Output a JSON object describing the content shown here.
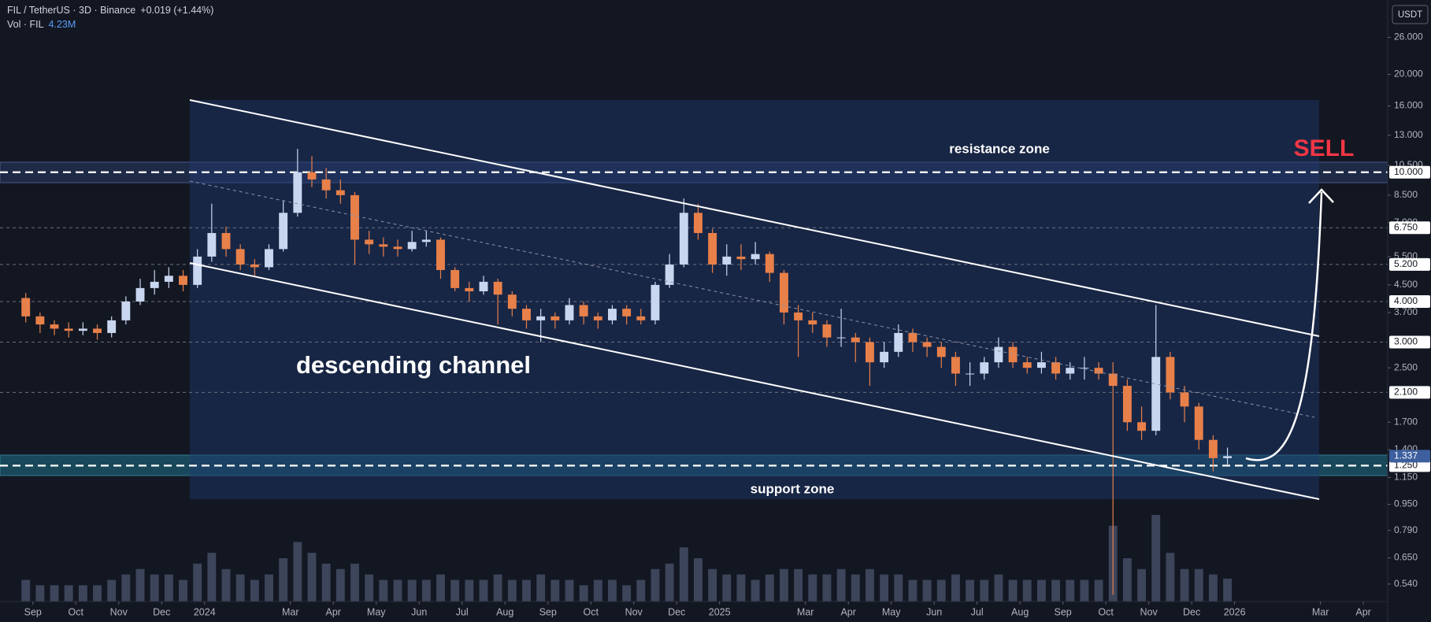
{
  "header": {
    "symbol": "FIL / TetherUS · 3D · Binance",
    "change": "+0.019 (+1.44%)",
    "volume_name": "Vol · FIL",
    "volume": "4.23M"
  },
  "chart_data": {
    "type": "candlestick",
    "axis_unit": "USDT",
    "log_scale": true,
    "grid": false,
    "up_color": "#c9d6f0",
    "down_color": "#e8804a",
    "volume_color": "#8a9bc4",
    "ylim": [
      0.477,
      33.9
    ],
    "yticks": [
      {
        "value": 26,
        "label": "26.000"
      },
      {
        "value": 20,
        "label": "20.000"
      },
      {
        "value": 16,
        "label": "16.000"
      },
      {
        "value": 13,
        "label": "13.000"
      },
      {
        "value": 10.5,
        "label": "10.500"
      },
      {
        "value": 8.5,
        "label": "8.500"
      },
      {
        "value": 7,
        "label": "7.000"
      },
      {
        "value": 5.5,
        "label": "5.500"
      },
      {
        "value": 4.5,
        "label": "4.500"
      },
      {
        "value": 3.7,
        "label": "3.700"
      },
      {
        "value": 2.5,
        "label": "2.500"
      },
      {
        "value": 1.7,
        "label": "1.700"
      },
      {
        "value": 1.4,
        "label": "1.400"
      },
      {
        "value": 1.15,
        "label": "1.150"
      },
      {
        "value": 0.95,
        "label": "0.950"
      },
      {
        "value": 0.79,
        "label": "0.790"
      },
      {
        "value": 0.65,
        "label": "0.650"
      },
      {
        "value": 0.54,
        "label": "0.540"
      }
    ],
    "price_lines": [
      {
        "value": 10,
        "label": "10.000",
        "style": "bold"
      },
      {
        "value": 6.75,
        "label": "6.750",
        "style": "thin"
      },
      {
        "value": 5.2,
        "label": "5.200",
        "style": "thin"
      },
      {
        "value": 4,
        "label": "4.000",
        "style": "thin"
      },
      {
        "value": 3,
        "label": "3.000",
        "style": "thin"
      },
      {
        "value": 2.1,
        "label": "2.100",
        "style": "thin"
      },
      {
        "value": 1.25,
        "label": "1.250",
        "style": "bold"
      }
    ],
    "xlim": [
      -1.8,
      95.2
    ],
    "xticks": [
      {
        "value": 0.5,
        "label": "Sep"
      },
      {
        "value": 3.5,
        "label": "Oct"
      },
      {
        "value": 6.5,
        "label": "Nov"
      },
      {
        "value": 9.5,
        "label": "Dec"
      },
      {
        "value": 12.5,
        "label": "2024"
      },
      {
        "value": 18.5,
        "label": "Mar"
      },
      {
        "value": 21.5,
        "label": "Apr"
      },
      {
        "value": 24.5,
        "label": "May"
      },
      {
        "value": 27.5,
        "label": "Jun"
      },
      {
        "value": 30.5,
        "label": "Jul"
      },
      {
        "value": 33.5,
        "label": "Aug"
      },
      {
        "value": 36.5,
        "label": "Sep"
      },
      {
        "value": 39.5,
        "label": "Oct"
      },
      {
        "value": 42.5,
        "label": "Nov"
      },
      {
        "value": 45.5,
        "label": "Dec"
      },
      {
        "value": 48.5,
        "label": "2025"
      },
      {
        "value": 54.5,
        "label": "Mar"
      },
      {
        "value": 57.5,
        "label": "Apr"
      },
      {
        "value": 60.5,
        "label": "May"
      },
      {
        "value": 63.5,
        "label": "Jun"
      },
      {
        "value": 66.5,
        "label": "Jul"
      },
      {
        "value": 69.5,
        "label": "Aug"
      },
      {
        "value": 72.5,
        "label": "Sep"
      },
      {
        "value": 75.5,
        "label": "Oct"
      },
      {
        "value": 78.5,
        "label": "Nov"
      },
      {
        "value": 81.5,
        "label": "Dec"
      },
      {
        "value": 84.5,
        "label": "2026"
      },
      {
        "value": 90.5,
        "label": "Mar"
      },
      {
        "value": 93.5,
        "label": "Apr"
      }
    ],
    "open": [
      4.1,
      3.6,
      3.4,
      3.3,
      3.25,
      3.3,
      3.2,
      3.5,
      4.0,
      4.4,
      4.6,
      4.8,
      4.5,
      5.5,
      6.5,
      5.8,
      5.2,
      5.1,
      5.8,
      7.5,
      10.0,
      9.5,
      8.8,
      8.5,
      6.2,
      6.0,
      5.9,
      5.8,
      6.1,
      6.2,
      5.0,
      4.4,
      4.3,
      4.6,
      4.2,
      3.8,
      3.5,
      3.6,
      3.5,
      3.9,
      3.6,
      3.5,
      3.8,
      3.6,
      3.5,
      4.5,
      5.2,
      7.5,
      6.5,
      5.2,
      5.5,
      5.4,
      5.6,
      4.9,
      3.7,
      3.5,
      3.4,
      3.1,
      3.1,
      3.0,
      2.6,
      2.8,
      3.2,
      3.0,
      2.9,
      2.7,
      2.4,
      2.4,
      2.6,
      2.9,
      2.6,
      2.5,
      2.6,
      2.4,
      2.5,
      2.5,
      2.4,
      2.2,
      1.7,
      1.6,
      2.7,
      2.1,
      1.9,
      1.5,
      1.318
    ],
    "high": [
      4.25,
      3.7,
      3.5,
      3.45,
      3.45,
      3.4,
      3.6,
      4.15,
      4.7,
      5.0,
      5.1,
      5.0,
      5.8,
      8.0,
      6.8,
      6.0,
      5.4,
      6.0,
      8.2,
      11.8,
      11.2,
      10.3,
      9.5,
      8.7,
      6.6,
      6.3,
      6.2,
      6.6,
      6.6,
      6.3,
      5.1,
      4.6,
      4.8,
      4.7,
      4.3,
      3.9,
      3.8,
      3.7,
      4.1,
      4.0,
      3.7,
      3.9,
      3.9,
      3.8,
      4.6,
      5.6,
      8.3,
      8.0,
      6.7,
      6.0,
      6.0,
      6.1,
      5.7,
      5.0,
      3.9,
      3.7,
      3.5,
      3.8,
      3.2,
      3.1,
      3.0,
      3.4,
      3.3,
      3.1,
      3.0,
      2.8,
      2.6,
      2.7,
      3.1,
      3.0,
      2.7,
      2.8,
      2.7,
      2.6,
      2.7,
      2.6,
      2.6,
      2.3,
      1.9,
      3.9,
      2.8,
      2.2,
      1.95,
      1.55,
      1.42
    ],
    "low": [
      3.45,
      3.2,
      3.15,
      3.1,
      3.15,
      3.05,
      3.1,
      3.4,
      3.9,
      4.2,
      4.4,
      4.3,
      4.4,
      5.3,
      5.5,
      5.0,
      4.8,
      5.0,
      5.7,
      7.3,
      9.0,
      8.3,
      8.0,
      5.2,
      5.6,
      5.5,
      5.5,
      5.7,
      5.9,
      4.7,
      4.3,
      4.0,
      4.2,
      3.4,
      3.6,
      3.3,
      3.0,
      3.3,
      3.4,
      3.4,
      3.3,
      3.4,
      3.4,
      3.4,
      3.4,
      4.4,
      5.1,
      6.2,
      4.9,
      4.8,
      5.0,
      5.2,
      4.6,
      3.4,
      2.7,
      3.2,
      2.9,
      2.9,
      2.6,
      2.2,
      2.5,
      2.7,
      2.8,
      2.7,
      2.5,
      2.2,
      2.2,
      2.3,
      2.5,
      2.5,
      2.4,
      2.4,
      2.3,
      2.3,
      2.3,
      2.3,
      0.5,
      1.6,
      1.5,
      1.55,
      2.0,
      1.7,
      1.4,
      1.2,
      1.26
    ],
    "close": [
      3.6,
      3.4,
      3.3,
      3.25,
      3.3,
      3.2,
      3.5,
      4.0,
      4.4,
      4.6,
      4.8,
      4.5,
      5.5,
      6.5,
      5.8,
      5.2,
      5.1,
      5.8,
      7.5,
      10.0,
      9.5,
      8.8,
      8.5,
      6.2,
      6.0,
      5.9,
      5.8,
      6.1,
      6.2,
      5.0,
      4.4,
      4.3,
      4.6,
      4.2,
      3.8,
      3.5,
      3.6,
      3.5,
      3.9,
      3.6,
      3.5,
      3.8,
      3.6,
      3.5,
      4.5,
      5.2,
      7.5,
      6.5,
      5.2,
      5.5,
      5.4,
      5.6,
      4.9,
      3.7,
      3.5,
      3.4,
      3.1,
      3.1,
      3.0,
      2.6,
      2.8,
      3.2,
      3.0,
      2.9,
      2.7,
      2.4,
      2.4,
      2.6,
      2.9,
      2.6,
      2.5,
      2.6,
      2.4,
      2.5,
      2.5,
      2.4,
      2.2,
      1.7,
      1.6,
      2.7,
      2.1,
      1.9,
      1.5,
      1.318,
      1.337
    ],
    "volume": [
      4,
      3,
      3,
      3,
      3,
      3,
      4,
      5,
      6,
      5,
      5,
      4,
      7,
      9,
      6,
      5,
      4,
      5,
      8,
      11,
      9,
      7,
      6,
      7,
      5,
      4,
      4,
      4,
      4,
      5,
      4,
      4,
      4,
      5,
      4,
      4,
      5,
      4,
      4,
      3,
      4,
      4,
      3,
      4,
      6,
      7,
      10,
      8,
      6,
      5,
      5,
      4,
      5,
      6,
      6,
      5,
      5,
      6,
      5,
      6,
      5,
      5,
      4,
      4,
      4,
      5,
      4,
      4,
      5,
      4,
      4,
      4,
      4,
      4,
      4,
      4,
      14,
      8,
      6,
      16,
      9,
      6,
      6,
      5,
      4.23
    ],
    "annotations": {
      "channel": "descending channel",
      "resistance": "resistance zone",
      "support": "support zone",
      "signal": "SELL"
    }
  }
}
